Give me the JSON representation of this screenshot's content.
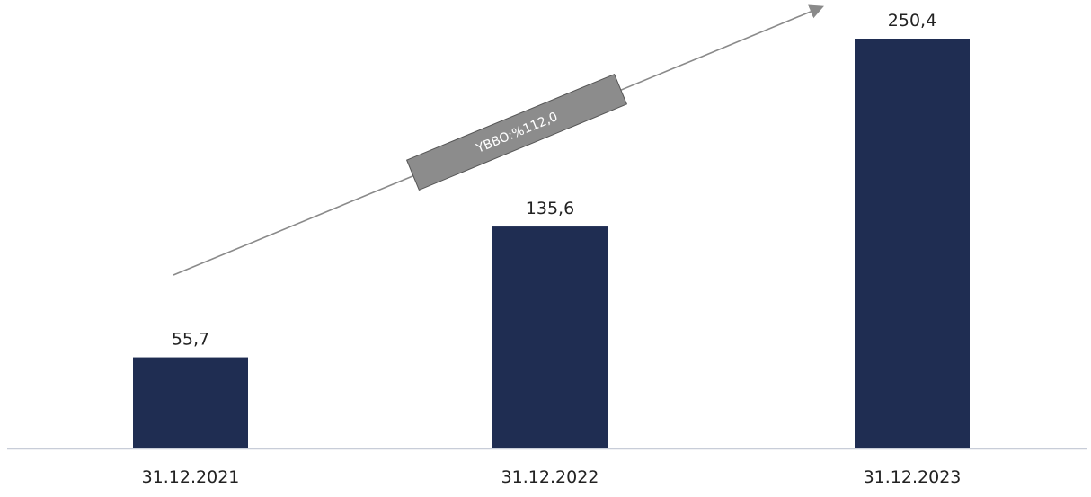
{
  "chart_data": {
    "type": "bar",
    "categories": [
      "31.12.2021",
      "31.12.2022",
      "31.12.2023"
    ],
    "values": [
      55.7,
      135.6,
      250.4
    ],
    "value_labels": [
      "55,7",
      "135,6",
      "250,4"
    ],
    "title": "",
    "xlabel": "",
    "ylabel": "",
    "ylim": [
      0,
      250.4
    ],
    "grid": false,
    "legend": "none",
    "annotation": {
      "text": "YBBO:%112,0",
      "type": "trend-arrow"
    },
    "colors": {
      "bar": "#1f2d52",
      "baseline": "#c8cdd8",
      "arrow": "#8a8a8a",
      "annotation_box": "#8c8c8c",
      "annotation_text": "#ffffff",
      "label_text": "#222222"
    }
  }
}
